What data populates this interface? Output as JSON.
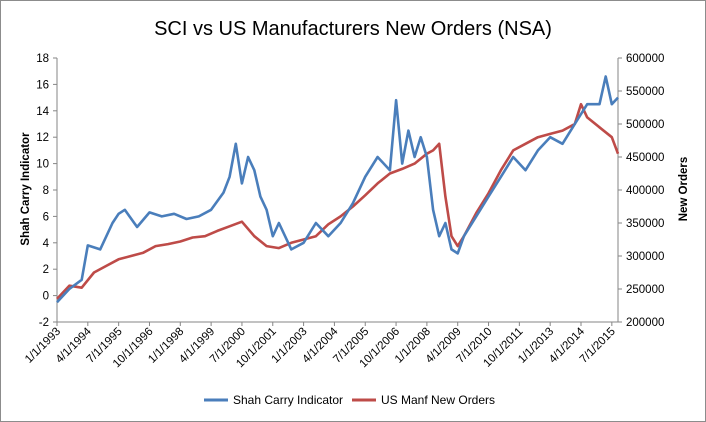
{
  "chart_data": {
    "type": "line",
    "title": "SCI vs US Manufacturers New Orders (NSA)",
    "ylabel_left": "Shah Carry Indicator",
    "ylabel_right": "New Orders",
    "ylim_left": [
      -2,
      18
    ],
    "ylim_right": [
      200000,
      600000
    ],
    "yticks_left": [
      "-2",
      "0",
      "2",
      "4",
      "6",
      "8",
      "10",
      "12",
      "14",
      "16",
      "18"
    ],
    "yticks_right": [
      "200000",
      "250000",
      "300000",
      "350000",
      "400000",
      "450000",
      "500000",
      "550000",
      "600000"
    ],
    "x_categories": [
      "1/1/1993",
      "4/1/1994",
      "7/1/1995",
      "10/1/1996",
      "1/1/1998",
      "4/1/1999",
      "7/1/2000",
      "10/1/2001",
      "1/1/2003",
      "4/1/2004",
      "7/1/2005",
      "10/1/2006",
      "1/1/2008",
      "4/1/2009",
      "7/1/2010",
      "10/1/2011",
      "1/1/2013",
      "4/1/2014",
      "7/1/2015"
    ],
    "grid": false,
    "legend_position": "bottom",
    "series": [
      {
        "name": "Shah Carry Indicator",
        "axis": "left",
        "color": "#4a7ebb",
        "x": [
          "1993-01",
          "1993-07",
          "1994-01",
          "1994-04",
          "1994-10",
          "1995-04",
          "1995-07",
          "1995-10",
          "1996-04",
          "1996-10",
          "1997-04",
          "1997-10",
          "1998-04",
          "1998-10",
          "1999-04",
          "1999-10",
          "2000-01",
          "2000-04",
          "2000-07",
          "2000-10",
          "2001-01",
          "2001-04",
          "2001-07",
          "2001-10",
          "2002-01",
          "2002-07",
          "2003-01",
          "2003-07",
          "2004-01",
          "2004-07",
          "2005-01",
          "2005-07",
          "2006-01",
          "2006-07",
          "2006-10",
          "2007-01",
          "2007-04",
          "2007-07",
          "2007-10",
          "2008-01",
          "2008-04",
          "2008-07",
          "2008-10",
          "2009-01",
          "2009-04",
          "2009-07",
          "2010-01",
          "2010-07",
          "2011-01",
          "2011-07",
          "2012-01",
          "2012-07",
          "2013-01",
          "2013-07",
          "2014-01",
          "2014-07",
          "2015-01",
          "2015-04",
          "2015-07",
          "2015-10"
        ],
        "values": [
          -0.5,
          0.5,
          1.2,
          3.8,
          3.5,
          5.5,
          6.2,
          6.5,
          5.2,
          6.3,
          6.0,
          6.2,
          5.8,
          6.0,
          6.5,
          7.8,
          9.0,
          11.5,
          8.5,
          10.5,
          9.5,
          7.5,
          6.5,
          4.5,
          5.5,
          3.5,
          4.0,
          5.5,
          4.5,
          5.5,
          7.0,
          9.0,
          10.5,
          9.5,
          14.8,
          10.0,
          12.5,
          10.5,
          12.0,
          10.5,
          6.5,
          4.5,
          5.5,
          3.5,
          3.2,
          4.5,
          6.0,
          7.5,
          9.0,
          10.5,
          9.5,
          11.0,
          12.0,
          11.5,
          13.0,
          14.5,
          14.5,
          16.6,
          14.5,
          15.0
        ]
      },
      {
        "name": "US Manf New Orders",
        "axis": "right",
        "color": "#be4b48",
        "x": [
          "1993-01",
          "1993-07",
          "1994-01",
          "1994-07",
          "1995-01",
          "1995-07",
          "1996-01",
          "1996-07",
          "1997-01",
          "1997-07",
          "1998-01",
          "1998-07",
          "1999-01",
          "1999-07",
          "2000-01",
          "2000-07",
          "2001-01",
          "2001-07",
          "2002-01",
          "2002-07",
          "2003-01",
          "2003-07",
          "2004-01",
          "2004-07",
          "2005-01",
          "2005-07",
          "2006-01",
          "2006-07",
          "2007-01",
          "2007-07",
          "2008-01",
          "2008-04",
          "2008-07",
          "2008-10",
          "2009-01",
          "2009-04",
          "2009-07",
          "2010-01",
          "2010-07",
          "2011-01",
          "2011-07",
          "2012-01",
          "2012-07",
          "2013-01",
          "2013-07",
          "2014-01",
          "2014-04",
          "2014-07",
          "2015-01",
          "2015-07",
          "2015-10"
        ],
        "values": [
          235000,
          255000,
          252000,
          275000,
          285000,
          295000,
          300000,
          305000,
          315000,
          318000,
          322000,
          328000,
          330000,
          338000,
          345000,
          352000,
          330000,
          315000,
          312000,
          320000,
          325000,
          330000,
          348000,
          360000,
          375000,
          392000,
          410000,
          425000,
          432000,
          440000,
          455000,
          460000,
          470000,
          390000,
          330000,
          315000,
          330000,
          365000,
          395000,
          430000,
          460000,
          470000,
          480000,
          485000,
          490000,
          500000,
          530000,
          510000,
          495000,
          480000,
          455000
        ]
      }
    ]
  }
}
